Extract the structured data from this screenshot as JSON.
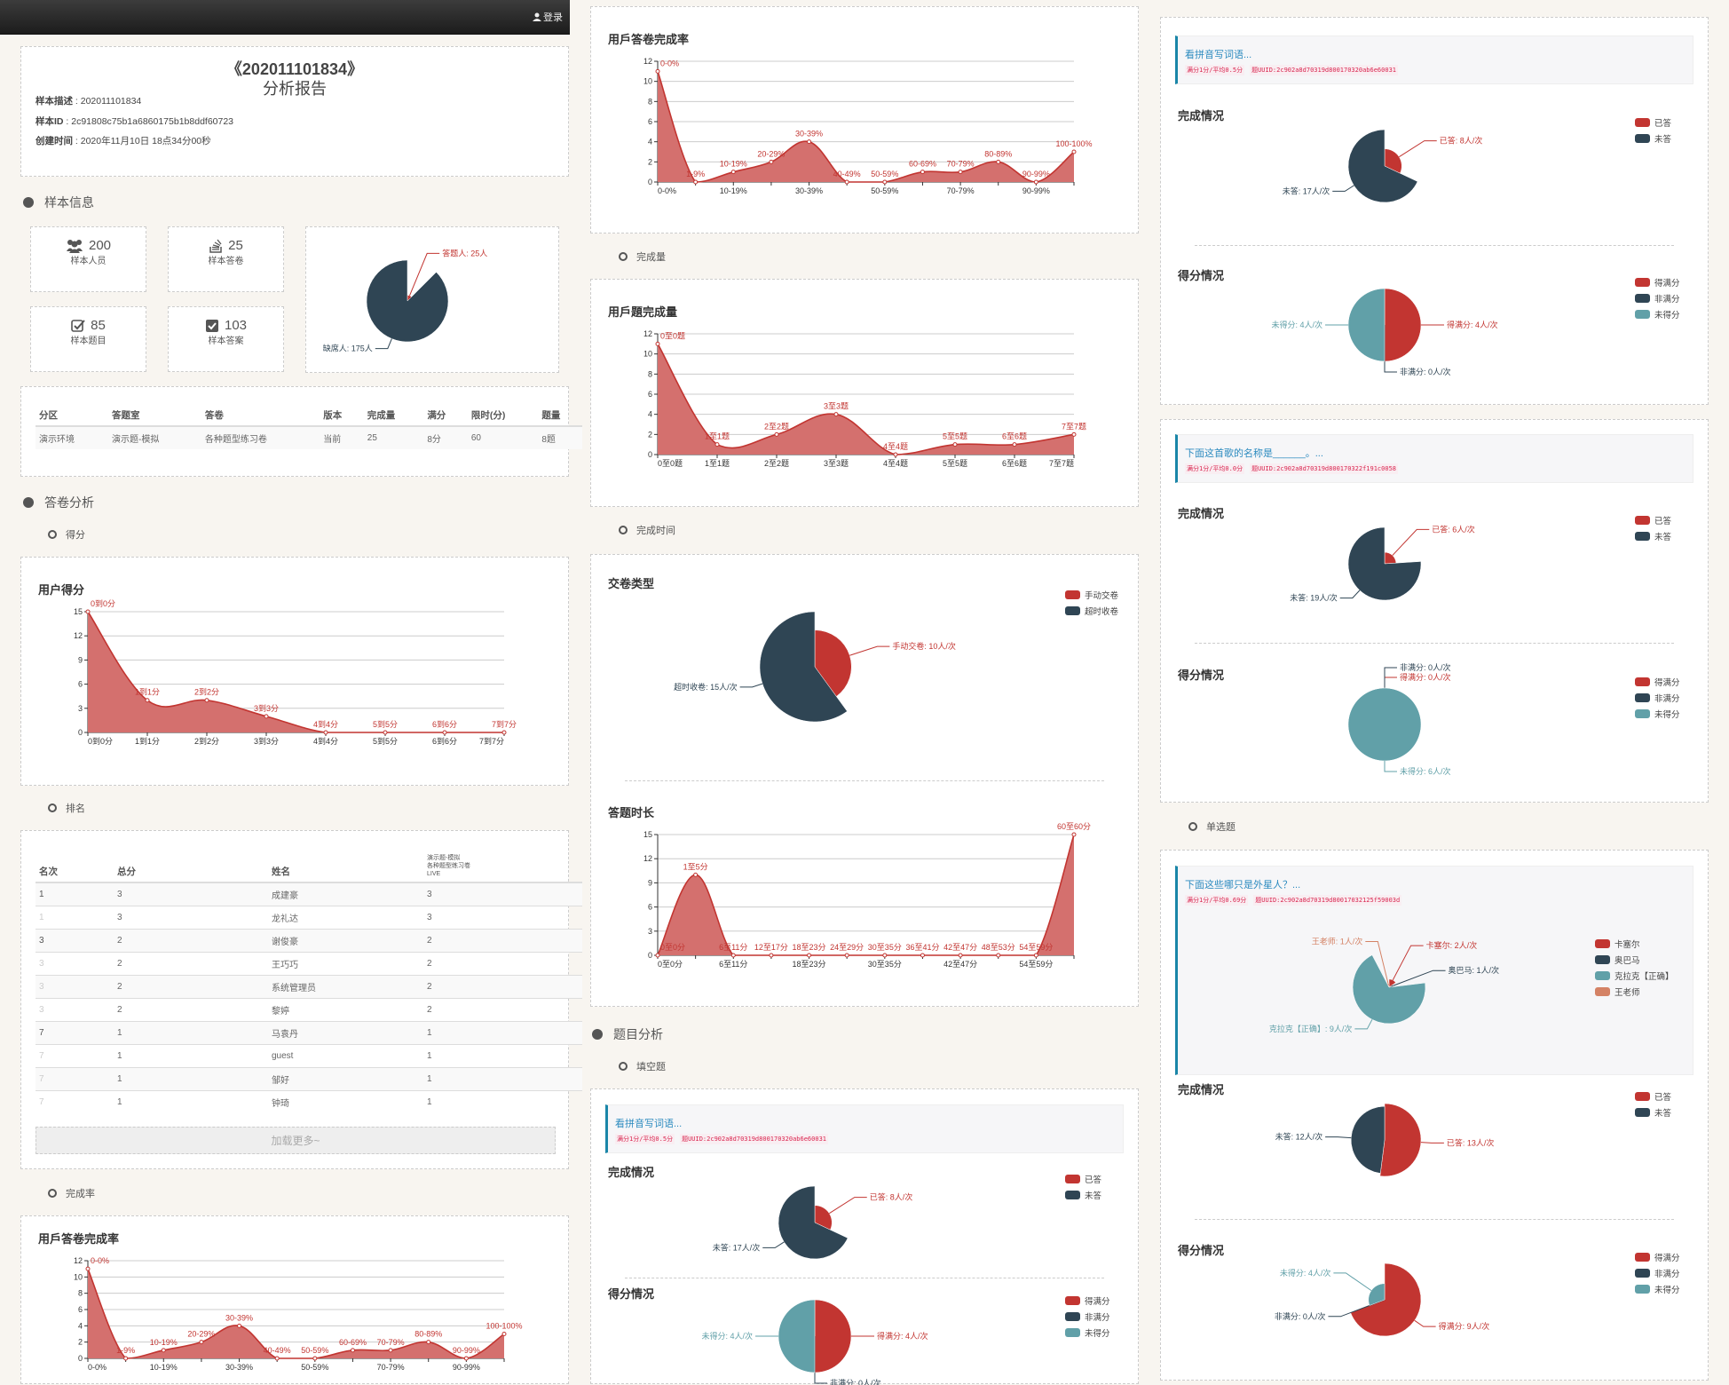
{
  "topbar": {
    "login_label": "登录",
    "login_icon": "user-icon"
  },
  "report": {
    "title": "《202011101834》",
    "subtitle": "分析报告",
    "fields": [
      {
        "label": "样本描述",
        "value": " : 202011101834"
      },
      {
        "label": "样本ID",
        "value": " : 2c91808c75b1a6860175b1b8ddf60723"
      },
      {
        "label": "创建时间",
        "value": " :  2020年11月10日 18点34分00秒"
      }
    ]
  },
  "sections": {
    "sample_info": "样本信息",
    "answer_analysis": "答卷分析",
    "question_analysis": "题目分析"
  },
  "subsections": {
    "score": "得分",
    "ranking": "排名",
    "completion_rate": "完成率",
    "completion_count": "完成量",
    "completion_time": "完成时间",
    "fill_blank": "填空题",
    "single_choice": "单选题"
  },
  "stats": [
    {
      "icon": "users-icon",
      "value": "200",
      "label": "样本人员"
    },
    {
      "icon": "stack-icon",
      "value": "25",
      "label": "样本答卷"
    },
    {
      "icon": "checkbox-outline-icon",
      "value": "85",
      "label": "样本题目"
    },
    {
      "icon": "checkbox-checked-icon",
      "value": "103",
      "label": "样本答案"
    }
  ],
  "attendance_pie": {
    "unit": "人",
    "slices": [
      {
        "name": "答题人",
        "value": 25
      },
      {
        "name": "缺席人",
        "value": 175
      }
    ]
  },
  "exam_table": {
    "headers": [
      "分区",
      "答题室",
      "答卷",
      "版本",
      "完成量",
      "满分",
      "限时(分)",
      "题量"
    ],
    "rows": [
      [
        "演示环境",
        "演示题-模拟",
        "各种题型练习卷",
        "当前",
        "25",
        "8分",
        "60",
        "8题"
      ]
    ]
  },
  "ranking": {
    "headers": [
      "名次",
      "总分",
      "姓名"
    ],
    "exam_header": [
      "演示题-模拟",
      "各种题型练习卷",
      "LIVE"
    ],
    "rows": [
      {
        "rank": "1",
        "tie": false,
        "total": "3",
        "name": "成建豪",
        "score": "3"
      },
      {
        "rank": "1",
        "tie": true,
        "total": "3",
        "name": "龙礼达",
        "score": "3"
      },
      {
        "rank": "3",
        "tie": false,
        "total": "2",
        "name": "谢俊豪",
        "score": "2"
      },
      {
        "rank": "3",
        "tie": true,
        "total": "2",
        "name": "王巧巧",
        "score": "2"
      },
      {
        "rank": "3",
        "tie": true,
        "total": "2",
        "name": "系统管理员",
        "score": "2"
      },
      {
        "rank": "3",
        "tie": true,
        "total": "2",
        "name": "黎婷",
        "score": "2"
      },
      {
        "rank": "7",
        "tie": false,
        "total": "1",
        "name": "马袁丹",
        "score": "1"
      },
      {
        "rank": "7",
        "tie": true,
        "total": "1",
        "name": "guest",
        "score": "1"
      },
      {
        "rank": "7",
        "tie": true,
        "total": "1",
        "name": "邹好",
        "score": "1"
      },
      {
        "rank": "7",
        "tie": true,
        "total": "1",
        "name": "钟琦",
        "score": "1"
      }
    ],
    "load_more": "加载更多~"
  },
  "colors": {
    "red": "#c23531",
    "dark": "#2f4554",
    "teal": "#61a0a8",
    "orange": "#d48265",
    "area": "#d4706e",
    "accent": "#1a86a8"
  },
  "chart_data": {
    "user_score": {
      "type": "area",
      "title": "用户得分",
      "ylim": [
        0,
        15
      ],
      "ystep": 3,
      "xtick_every": 1,
      "categories": [
        "0到0分",
        "1到1分",
        "2到2分",
        "3到3分",
        "4到4分",
        "5到5分",
        "6到6分",
        "7到7分"
      ],
      "values": [
        15,
        4,
        4,
        2,
        0,
        0,
        0,
        0
      ]
    },
    "completion_rate": {
      "type": "area",
      "title": "用戶答卷完成率",
      "ylim": [
        0,
        12
      ],
      "ystep": 2,
      "xtick_every": 2,
      "categories": [
        "0-0%",
        "1-9%",
        "10-19%",
        "20-29%",
        "30-39%",
        "40-49%",
        "50-59%",
        "60-69%",
        "70-79%",
        "80-89%",
        "90-99%",
        "100-100%"
      ],
      "values": [
        11,
        0,
        1,
        2,
        4,
        0,
        0,
        1,
        1,
        2,
        0,
        3
      ]
    },
    "question_count": {
      "type": "area",
      "title": "用戶題完成量",
      "ylim": [
        0,
        12
      ],
      "ystep": 2,
      "xtick_every": 1,
      "categories": [
        "0至0题",
        "1至1题",
        "2至2题",
        "3至3题",
        "4至4题",
        "5至5题",
        "6至6题",
        "7至7题"
      ],
      "values": [
        11,
        1,
        2,
        4,
        0,
        1,
        1,
        2
      ]
    },
    "duration": {
      "type": "area",
      "title": "答题时长",
      "ylim": [
        0,
        15
      ],
      "ystep": 3,
      "xtick_every": 2,
      "categories": [
        "0至0分",
        "1至5分",
        "6至11分",
        "12至17分",
        "18至23分",
        "24至29分",
        "30至35分",
        "36至41分",
        "42至47分",
        "48至53分",
        "54至59分",
        "60至60分"
      ],
      "values": [
        0,
        10,
        0,
        0,
        0,
        0,
        0,
        0,
        0,
        0,
        0,
        15
      ]
    },
    "submission_type": {
      "type": "pie",
      "title": "交卷类型",
      "slices": [
        {
          "name": "手动交卷",
          "value": 10
        },
        {
          "name": "超时收卷",
          "value": 15
        }
      ]
    }
  },
  "pie_unit": "人/次",
  "question_labels": {
    "completion": "完成情况",
    "score": "得分情况"
  },
  "questions": {
    "fill_blank_middle": {
      "title": "看拼音写词语...",
      "meta": [
        "满分1分/平均0.5分",
        "题UUID:2c902a8d70319d800170320ab6e60031"
      ],
      "completion": [
        {
          "name": "已答",
          "value": 8
        },
        {
          "name": "未答",
          "value": 17
        }
      ],
      "score": [
        {
          "name": "得满分",
          "value": 4
        },
        {
          "name": "非满分",
          "value": 0
        },
        {
          "name": "未得分",
          "value": 4
        }
      ]
    },
    "fill_blank_1": {
      "title": "看拼音写词语...",
      "meta": [
        "满分1分/平均0.5分",
        "题UUID:2c902a8d70319d800170320ab6e60031"
      ],
      "completion": [
        {
          "name": "已答",
          "value": 8
        },
        {
          "name": "未答",
          "value": 17
        }
      ],
      "score": [
        {
          "name": "得满分",
          "value": 4
        },
        {
          "name": "非满分",
          "value": 0
        },
        {
          "name": "未得分",
          "value": 4
        }
      ]
    },
    "fill_blank_2": {
      "title": "下面这首歌的名称是______。...",
      "meta": [
        "满分1分/平均0.0分",
        "题UUID:2c902a8d70319d800170322f191c0058"
      ],
      "completion": [
        {
          "name": "已答",
          "value": 6
        },
        {
          "name": "未答",
          "value": 19
        }
      ],
      "score": [
        {
          "name": "得满分",
          "value": 0
        },
        {
          "name": "非满分",
          "value": 0
        },
        {
          "name": "未得分",
          "value": 6
        }
      ]
    },
    "single_choice_1": {
      "title": "下面这些哪只是外星人？...",
      "meta": [
        "满分1分/平均0.69分",
        "题UUID:2c902a8d70319d80017032125f59003d"
      ],
      "options": [
        {
          "name": "卡塞尔",
          "value": 2
        },
        {
          "name": "奥巴马",
          "value": 1
        },
        {
          "name": "克拉克【正确】",
          "value": 9
        },
        {
          "name": "王老师",
          "value": 1
        }
      ],
      "completion": [
        {
          "name": "已答",
          "value": 13
        },
        {
          "name": "未答",
          "value": 12
        }
      ],
      "score": [
        {
          "name": "得满分",
          "value": 9
        },
        {
          "name": "非满分",
          "value": 0
        },
        {
          "name": "未得分",
          "value": 4
        }
      ]
    }
  }
}
